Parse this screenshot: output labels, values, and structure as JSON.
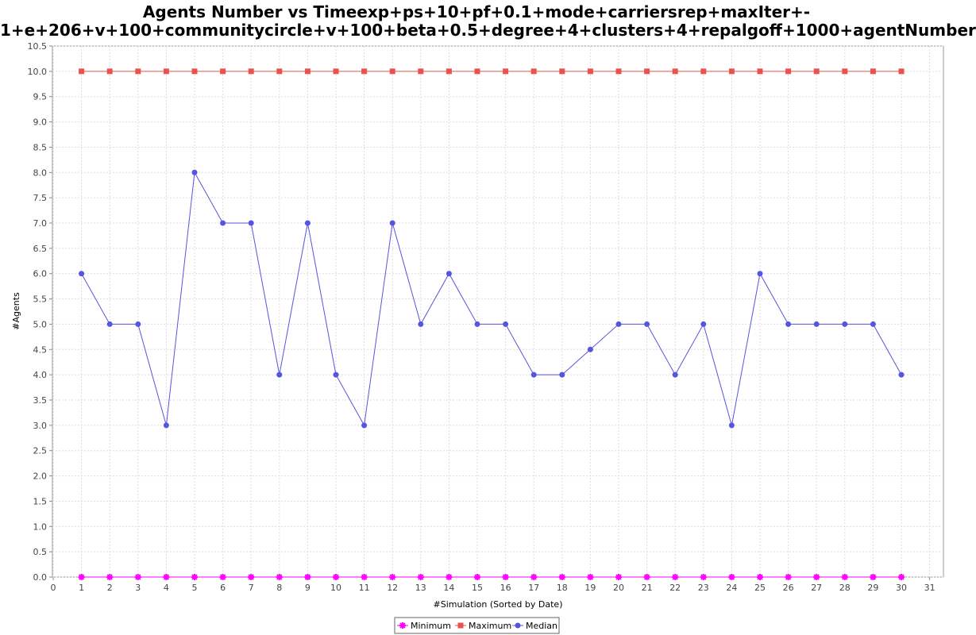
{
  "chart_data": {
    "type": "line",
    "title_line1": "Agents Number vs Timeexp+ps+10+pf+0.1+mode+carriersrep+maxIter+-",
    "title_line2": "1+e+206+v+100+communitycircle+v+100+beta+0.5+degree+4+clusters+4+repalgoff+1000+agentNumber",
    "xlabel": "#Simulation (Sorted by Date)",
    "ylabel": "#Agents",
    "xlim": [
      0,
      31.5
    ],
    "ylim": [
      0,
      10.5
    ],
    "x_ticks": [
      0,
      1,
      2,
      3,
      4,
      5,
      6,
      7,
      8,
      9,
      10,
      11,
      12,
      13,
      14,
      15,
      16,
      17,
      18,
      19,
      20,
      21,
      22,
      23,
      24,
      25,
      26,
      27,
      28,
      29,
      30,
      31
    ],
    "y_ticks": [
      "0.0",
      "0.5",
      "1.0",
      "1.5",
      "2.0",
      "2.5",
      "3.0",
      "3.5",
      "4.0",
      "4.5",
      "5.0",
      "5.5",
      "6.0",
      "6.5",
      "7.0",
      "7.5",
      "8.0",
      "8.5",
      "9.0",
      "9.5",
      "10.0",
      "10.5"
    ],
    "grid": true,
    "legend_position": "bottom-center",
    "x": [
      1,
      2,
      3,
      4,
      5,
      6,
      7,
      8,
      9,
      10,
      11,
      12,
      13,
      14,
      15,
      16,
      17,
      18,
      19,
      20,
      21,
      22,
      23,
      24,
      25,
      26,
      27,
      28,
      29,
      30
    ],
    "series": [
      {
        "name": "Minimum",
        "color": "#ff00ff",
        "marker": "star",
        "values": [
          0,
          0,
          0,
          0,
          0,
          0,
          0,
          0,
          0,
          0,
          0,
          0,
          0,
          0,
          0,
          0,
          0,
          0,
          0,
          0,
          0,
          0,
          0,
          0,
          0,
          0,
          0,
          0,
          0,
          0
        ]
      },
      {
        "name": "Maximum",
        "color": "#e8534f",
        "marker": "square",
        "values": [
          10,
          10,
          10,
          10,
          10,
          10,
          10,
          10,
          10,
          10,
          10,
          10,
          10,
          10,
          10,
          10,
          10,
          10,
          10,
          10,
          10,
          10,
          10,
          10,
          10,
          10,
          10,
          10,
          10,
          10
        ]
      },
      {
        "name": "Median",
        "color": "#5555dd",
        "marker": "circle",
        "values": [
          6,
          5,
          5,
          3,
          8,
          7,
          7,
          4,
          7,
          4,
          3,
          7,
          5,
          6,
          5,
          5,
          4,
          4,
          4.5,
          5,
          5,
          4,
          5,
          3,
          6,
          5,
          5,
          5,
          5,
          4
        ]
      }
    ]
  }
}
